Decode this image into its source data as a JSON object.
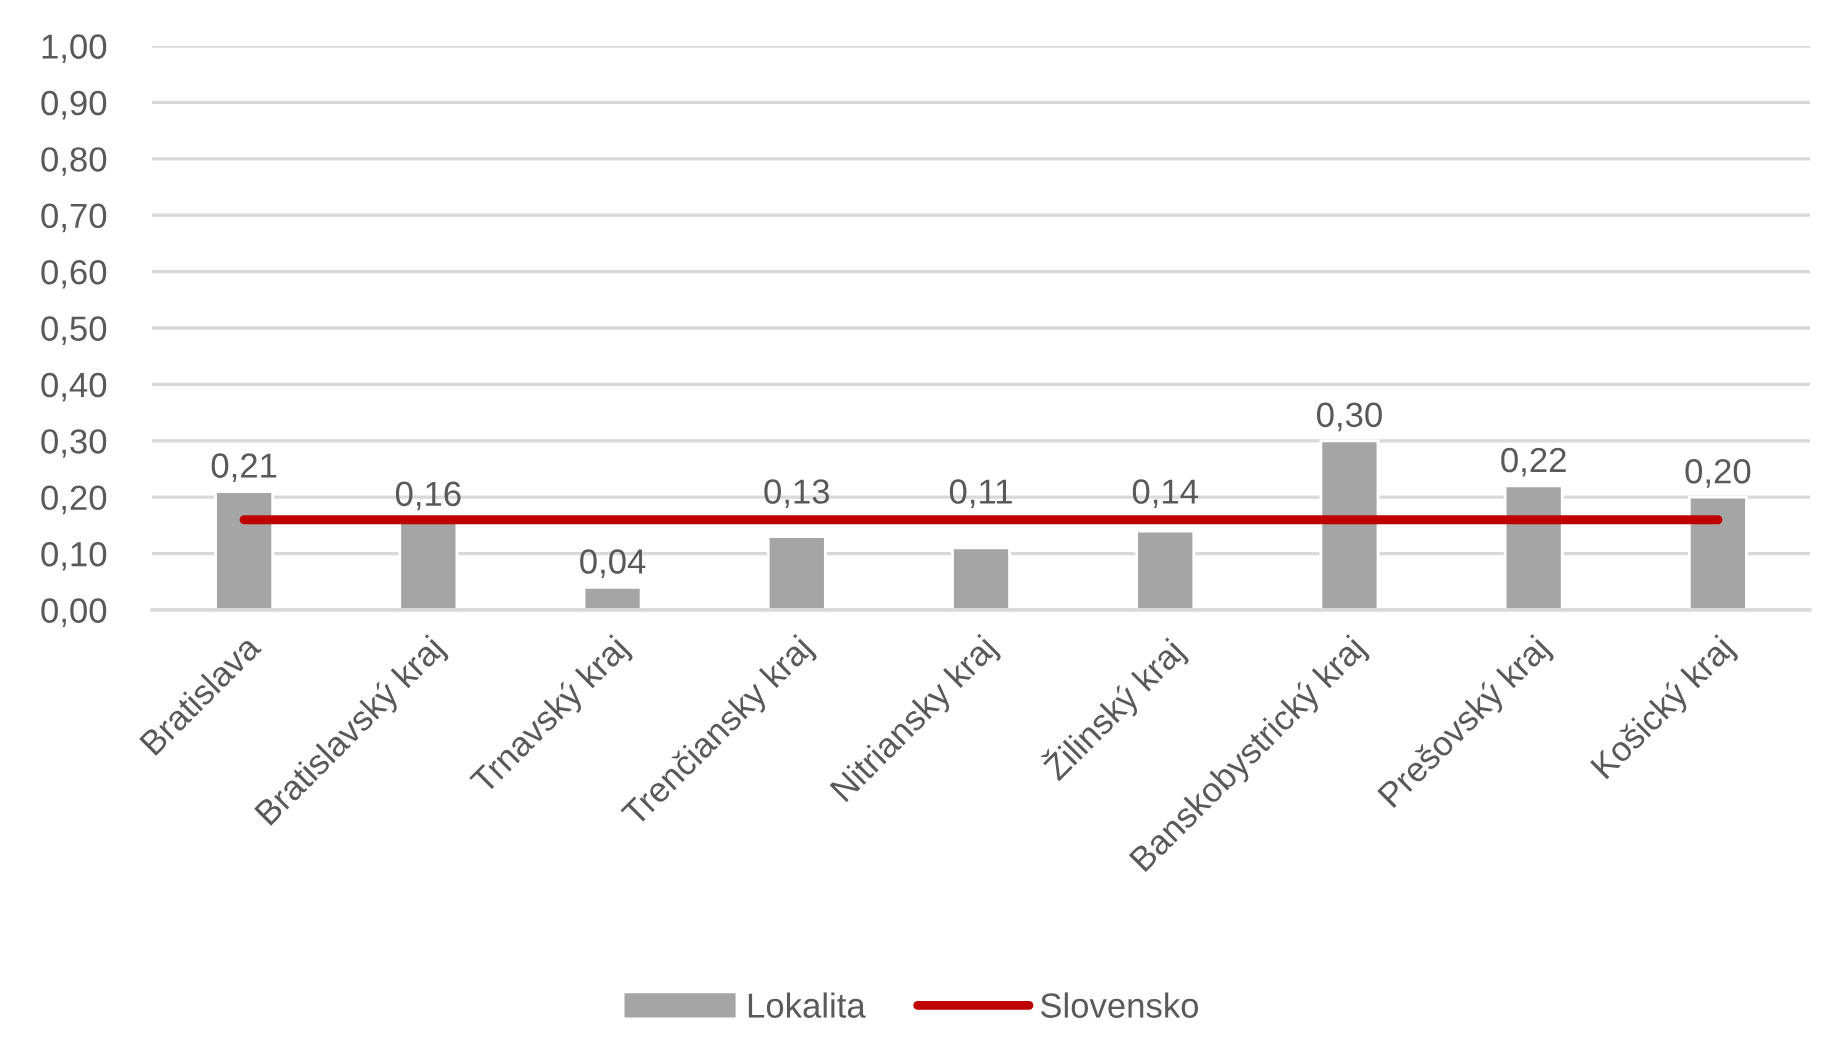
{
  "chart_data": {
    "type": "bar",
    "categories": [
      "Bratislava",
      "Bratislavský kraj",
      "Trnavský kraj",
      "Trenčiansky kraj",
      "Nitriansky kraj",
      "Žilinský kraj",
      "Banskobystrický kraj",
      "Prešovský kraj",
      "Košický kraj"
    ],
    "series": [
      {
        "name": "Lokalita",
        "color": "#a5a5a5",
        "values": [
          0.21,
          0.16,
          0.04,
          0.13,
          0.11,
          0.14,
          0.3,
          0.22,
          0.2
        ],
        "value_labels": [
          "0,21",
          "0,16",
          "0,04",
          "0,13",
          "0,11",
          "0,14",
          "0,30",
          "0,22",
          "0,20"
        ]
      },
      {
        "name": "Slovensko",
        "type": "line",
        "color": "#c00000",
        "values": [
          0.16,
          0.16,
          0.16,
          0.16,
          0.16,
          0.16,
          0.16,
          0.16,
          0.16
        ]
      }
    ],
    "ylim": [
      0,
      1
    ],
    "yticks": [
      {
        "value": 0,
        "label": "0,00"
      },
      {
        "value": 0.1,
        "label": "0,10"
      },
      {
        "value": 0.2,
        "label": "0,20"
      },
      {
        "value": 0.3,
        "label": "0,30"
      },
      {
        "value": 0.4,
        "label": "0,40"
      },
      {
        "value": 0.5,
        "label": "0,50"
      },
      {
        "value": 0.6,
        "label": "0,60"
      },
      {
        "value": 0.7,
        "label": "0,70"
      },
      {
        "value": 0.8,
        "label": "0,80"
      },
      {
        "value": 0.9,
        "label": "0,90"
      },
      {
        "value": 1,
        "label": "1,00"
      }
    ],
    "grid": "y",
    "legend": "bottom"
  }
}
